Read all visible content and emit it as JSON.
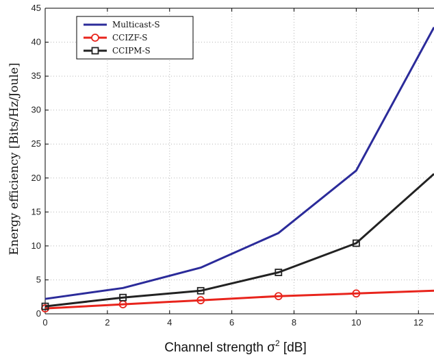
{
  "chart_data": {
    "type": "line",
    "title": "",
    "xlabel": "Channel strength σ",
    "xlabel_sup": "2",
    "xlabel_unit": " [dB]",
    "ylabel": "Energy efficiency [Bits/Hz/Joule]",
    "xlim": [
      0,
      12.5
    ],
    "ylim": [
      0,
      45
    ],
    "xticks": [
      0,
      2,
      4,
      6,
      8,
      10,
      12
    ],
    "yticks": [
      0,
      5,
      10,
      15,
      20,
      25,
      30,
      35,
      40,
      45
    ],
    "grid": true,
    "legend_position": "top-left",
    "series": [
      {
        "name": "Multicast-S",
        "color": "#2b2b9a",
        "marker": "none",
        "x": [
          0,
          2.5,
          5,
          7.5,
          10,
          12.5
        ],
        "y": [
          2.2,
          3.8,
          6.8,
          11.9,
          21.1,
          42.2
        ]
      },
      {
        "name": "CCIZF-S",
        "color": "#e8241c",
        "marker": "circle",
        "x": [
          0,
          2.5,
          5,
          7.5,
          10,
          12.5
        ],
        "y": [
          0.8,
          1.4,
          2.0,
          2.6,
          3.0,
          3.4
        ]
      },
      {
        "name": "CCIPM-S",
        "color": "#222222",
        "marker": "square",
        "x": [
          0,
          2.5,
          5,
          7.5,
          10,
          12.5
        ],
        "y": [
          1.1,
          2.4,
          3.4,
          6.1,
          10.4,
          20.6
        ]
      }
    ]
  }
}
